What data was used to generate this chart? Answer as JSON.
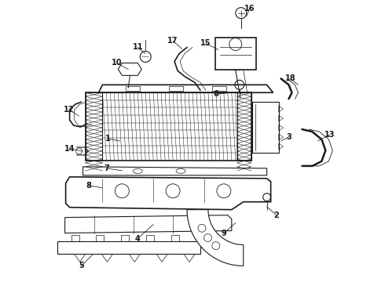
{
  "bg_color": "#ffffff",
  "line_color": "#1a1a1a",
  "fig_width": 4.9,
  "fig_height": 3.6,
  "dpi": 100,
  "label_fs": 7.0,
  "lw": 0.8
}
